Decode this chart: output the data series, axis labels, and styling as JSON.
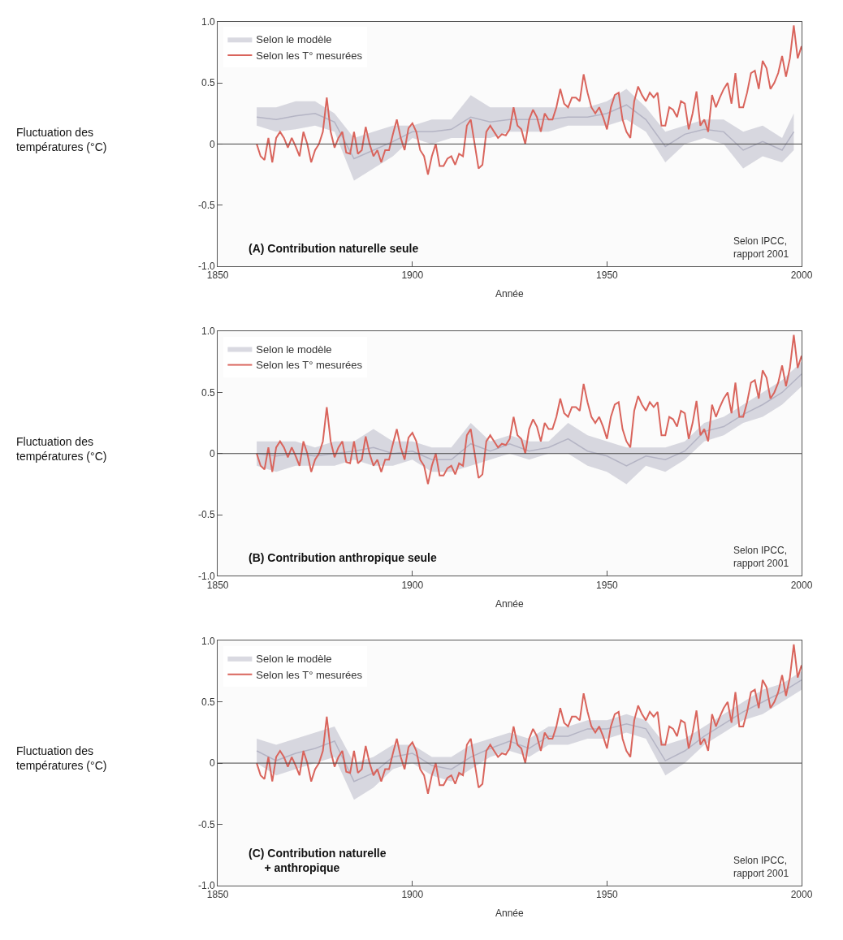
{
  "chart_data": [
    {
      "type": "line",
      "xlabel": "Année",
      "ylabel": "Fluctuation des\ntempératures (°C)",
      "xlim": [
        1850,
        2000
      ],
      "ylim": [
        -1.0,
        1.0
      ],
      "xticks": [
        1850,
        1900,
        1950,
        2000
      ],
      "yticks": [
        {
          "value": -1.0,
          "label": "-1.0"
        },
        {
          "value": -0.5,
          "label": "-0.5"
        },
        0,
        {
          "value": 0.5,
          "label": "0.5"
        },
        {
          "value": 1.0,
          "label": "1.0"
        }
      ],
      "grid": false,
      "legend": "top left",
      "marker": "none",
      "line_style": "solid",
      "ref_lines": [
        {
          "axis": "y",
          "value": 0,
          "color": "#444444"
        }
      ],
      "annotations": [
        "(A) Contribution naturelle seule",
        "Selon IPCC,\nrapport 2001"
      ],
      "series": [
        {
          "name": "Selon le modèle",
          "color": "#b4b4c4",
          "x": [
            1860,
            1865,
            1870,
            1875,
            1880,
            1885,
            1890,
            1895,
            1900,
            1905,
            1910,
            1915,
            1920,
            1925,
            1930,
            1935,
            1940,
            1945,
            1950,
            1955,
            1960,
            1965,
            1970,
            1975,
            1980,
            1985,
            1990,
            1995,
            1998
          ],
          "lower": [
            0.15,
            0.1,
            0.12,
            0.15,
            0.1,
            -0.3,
            -0.2,
            -0.1,
            0.05,
            0.0,
            0.05,
            0.05,
            0.05,
            0.1,
            0.1,
            0.1,
            0.15,
            0.15,
            0.15,
            0.2,
            0.1,
            -0.15,
            0.0,
            0.05,
            0.0,
            -0.2,
            -0.1,
            -0.15,
            -0.05
          ],
          "upper": [
            0.3,
            0.3,
            0.35,
            0.35,
            0.25,
            0.05,
            0.1,
            0.15,
            0.15,
            0.2,
            0.2,
            0.4,
            0.3,
            0.3,
            0.3,
            0.3,
            0.3,
            0.3,
            0.35,
            0.45,
            0.3,
            0.1,
            0.15,
            0.2,
            0.2,
            0.1,
            0.15,
            0.05,
            0.25
          ],
          "values": [
            0.22,
            0.2,
            0.23,
            0.25,
            0.18,
            -0.12,
            -0.05,
            0.02,
            0.1,
            0.1,
            0.12,
            0.22,
            0.18,
            0.2,
            0.2,
            0.2,
            0.22,
            0.22,
            0.25,
            0.32,
            0.2,
            -0.02,
            0.08,
            0.12,
            0.1,
            -0.05,
            0.02,
            -0.05,
            0.1
          ]
        },
        {
          "name": "Selon les T° mesurées",
          "type": "line",
          "color": "#d9645c",
          "x": [
            1860,
            1861,
            1862,
            1863,
            1864,
            1865,
            1866,
            1867,
            1868,
            1869,
            1870,
            1871,
            1872,
            1873,
            1874,
            1875,
            1876,
            1877,
            1878,
            1879,
            1880,
            1881,
            1882,
            1883,
            1884,
            1885,
            1886,
            1887,
            1888,
            1889,
            1890,
            1891,
            1892,
            1893,
            1894,
            1895,
            1896,
            1897,
            1898,
            1899,
            1900,
            1901,
            1902,
            1903,
            1904,
            1905,
            1906,
            1907,
            1908,
            1909,
            1910,
            1911,
            1912,
            1913,
            1914,
            1915,
            1916,
            1917,
            1918,
            1919,
            1920,
            1921,
            1922,
            1923,
            1924,
            1925,
            1926,
            1927,
            1928,
            1929,
            1930,
            1931,
            1932,
            1933,
            1934,
            1935,
            1936,
            1937,
            1938,
            1939,
            1940,
            1941,
            1942,
            1943,
            1944,
            1945,
            1946,
            1947,
            1948,
            1949,
            1950,
            1951,
            1952,
            1953,
            1954,
            1955,
            1956,
            1957,
            1958,
            1959,
            1960,
            1961,
            1962,
            1963,
            1964,
            1965,
            1966,
            1967,
            1968,
            1969,
            1970,
            1971,
            1972,
            1973,
            1974,
            1975,
            1976,
            1977,
            1978,
            1979,
            1980,
            1981,
            1982,
            1983,
            1984,
            1985,
            1986,
            1987,
            1988,
            1989,
            1990,
            1991,
            1992,
            1993,
            1994,
            1995,
            1996,
            1997,
            1998,
            1999,
            2000
          ],
          "values": [
            0.0,
            -0.1,
            -0.13,
            0.05,
            -0.15,
            0.05,
            0.1,
            0.05,
            -0.03,
            0.05,
            -0.02,
            -0.1,
            0.1,
            0.0,
            -0.15,
            -0.05,
            0.0,
            0.1,
            0.38,
            0.1,
            -0.03,
            0.05,
            0.1,
            -0.07,
            -0.08,
            0.1,
            -0.08,
            -0.05,
            0.14,
            0.0,
            -0.1,
            -0.05,
            -0.15,
            -0.05,
            -0.05,
            0.08,
            0.2,
            0.05,
            -0.05,
            0.13,
            0.17,
            0.1,
            -0.05,
            -0.1,
            -0.25,
            -0.1,
            0.0,
            -0.18,
            -0.18,
            -0.12,
            -0.1,
            -0.17,
            -0.08,
            -0.1,
            0.15,
            0.2,
            0.0,
            -0.2,
            -0.17,
            0.1,
            0.15,
            0.1,
            0.05,
            0.08,
            0.07,
            0.12,
            0.3,
            0.15,
            0.12,
            0.0,
            0.2,
            0.28,
            0.22,
            0.1,
            0.25,
            0.2,
            0.2,
            0.3,
            0.45,
            0.33,
            0.3,
            0.38,
            0.38,
            0.35,
            0.57,
            0.42,
            0.3,
            0.25,
            0.3,
            0.22,
            0.12,
            0.3,
            0.4,
            0.42,
            0.2,
            0.1,
            0.05,
            0.35,
            0.47,
            0.4,
            0.35,
            0.42,
            0.38,
            0.42,
            0.15,
            0.15,
            0.3,
            0.28,
            0.22,
            0.35,
            0.33,
            0.12,
            0.25,
            0.43,
            0.15,
            0.2,
            0.1,
            0.4,
            0.3,
            0.38,
            0.45,
            0.5,
            0.33,
            0.58,
            0.3,
            0.3,
            0.42,
            0.58,
            0.6,
            0.45,
            0.68,
            0.62,
            0.45,
            0.5,
            0.58,
            0.72,
            0.55,
            0.7,
            0.97,
            0.7,
            0.8
          ]
        }
      ]
    },
    {
      "type": "line",
      "xlabel": "Année",
      "ylabel": "Fluctuation des\ntempératures (°C)",
      "xlim": [
        1850,
        2000
      ],
      "ylim": [
        -1.0,
        1.0
      ],
      "xticks": [
        1850,
        1900,
        1950,
        2000
      ],
      "yticks": [
        {
          "value": -1.0,
          "label": "-1.0"
        },
        {
          "value": -0.5,
          "label": "-0.5"
        },
        0,
        {
          "value": 0.5,
          "label": "0.5"
        },
        {
          "value": 1.0,
          "label": "1.0"
        }
      ],
      "grid": false,
      "legend": "top left",
      "marker": "none",
      "line_style": "solid",
      "ref_lines": [
        {
          "axis": "y",
          "value": 0,
          "color": "#444444"
        }
      ],
      "annotations": [
        "(B) Contribution anthropique seule",
        "Selon IPCC,\nrapport 2001"
      ],
      "series": [
        {
          "name": "Selon le modèle",
          "color": "#b4b4c4",
          "x": [
            1860,
            1865,
            1870,
            1875,
            1880,
            1885,
            1890,
            1895,
            1900,
            1905,
            1910,
            1915,
            1920,
            1925,
            1930,
            1935,
            1940,
            1945,
            1950,
            1955,
            1960,
            1965,
            1970,
            1975,
            1980,
            1985,
            1990,
            1995,
            2000
          ],
          "lower": [
            -0.1,
            -0.15,
            -0.1,
            -0.1,
            -0.1,
            -0.05,
            -0.1,
            -0.1,
            -0.05,
            -0.15,
            -0.15,
            -0.1,
            -0.05,
            0.0,
            -0.05,
            0.0,
            0.0,
            -0.1,
            -0.15,
            -0.25,
            -0.1,
            -0.15,
            -0.05,
            0.1,
            0.15,
            0.25,
            0.3,
            0.4,
            0.55
          ],
          "upper": [
            0.1,
            0.1,
            0.1,
            0.05,
            0.1,
            0.1,
            0.2,
            0.1,
            0.1,
            0.05,
            0.05,
            0.25,
            0.1,
            0.15,
            0.1,
            0.1,
            0.25,
            0.15,
            0.1,
            0.05,
            0.05,
            0.05,
            0.1,
            0.25,
            0.3,
            0.4,
            0.5,
            0.6,
            0.75
          ],
          "values": [
            0.0,
            -0.02,
            0.0,
            -0.02,
            0.0,
            0.02,
            0.05,
            0.0,
            0.02,
            -0.05,
            -0.05,
            0.08,
            0.02,
            0.08,
            0.02,
            0.05,
            0.12,
            0.02,
            -0.02,
            -0.1,
            -0.02,
            -0.05,
            0.02,
            0.18,
            0.22,
            0.32,
            0.4,
            0.5,
            0.65
          ]
        },
        {
          "name": "Selon les T° mesurées",
          "type": "line",
          "color": "#d9645c",
          "x": [
            1860,
            1861,
            1862,
            1863,
            1864,
            1865,
            1866,
            1867,
            1868,
            1869,
            1870,
            1871,
            1872,
            1873,
            1874,
            1875,
            1876,
            1877,
            1878,
            1879,
            1880,
            1881,
            1882,
            1883,
            1884,
            1885,
            1886,
            1887,
            1888,
            1889,
            1890,
            1891,
            1892,
            1893,
            1894,
            1895,
            1896,
            1897,
            1898,
            1899,
            1900,
            1901,
            1902,
            1903,
            1904,
            1905,
            1906,
            1907,
            1908,
            1909,
            1910,
            1911,
            1912,
            1913,
            1914,
            1915,
            1916,
            1917,
            1918,
            1919,
            1920,
            1921,
            1922,
            1923,
            1924,
            1925,
            1926,
            1927,
            1928,
            1929,
            1930,
            1931,
            1932,
            1933,
            1934,
            1935,
            1936,
            1937,
            1938,
            1939,
            1940,
            1941,
            1942,
            1943,
            1944,
            1945,
            1946,
            1947,
            1948,
            1949,
            1950,
            1951,
            1952,
            1953,
            1954,
            1955,
            1956,
            1957,
            1958,
            1959,
            1960,
            1961,
            1962,
            1963,
            1964,
            1965,
            1966,
            1967,
            1968,
            1969,
            1970,
            1971,
            1972,
            1973,
            1974,
            1975,
            1976,
            1977,
            1978,
            1979,
            1980,
            1981,
            1982,
            1983,
            1984,
            1985,
            1986,
            1987,
            1988,
            1989,
            1990,
            1991,
            1992,
            1993,
            1994,
            1995,
            1996,
            1997,
            1998,
            1999,
            2000
          ],
          "values": [
            0.0,
            -0.1,
            -0.13,
            0.05,
            -0.15,
            0.05,
            0.1,
            0.05,
            -0.03,
            0.05,
            -0.02,
            -0.1,
            0.1,
            0.0,
            -0.15,
            -0.05,
            0.0,
            0.1,
            0.38,
            0.1,
            -0.03,
            0.05,
            0.1,
            -0.07,
            -0.08,
            0.1,
            -0.08,
            -0.05,
            0.14,
            0.0,
            -0.1,
            -0.05,
            -0.15,
            -0.05,
            -0.05,
            0.08,
            0.2,
            0.05,
            -0.05,
            0.13,
            0.17,
            0.1,
            -0.05,
            -0.1,
            -0.25,
            -0.1,
            0.0,
            -0.18,
            -0.18,
            -0.12,
            -0.1,
            -0.17,
            -0.08,
            -0.1,
            0.15,
            0.2,
            0.0,
            -0.2,
            -0.17,
            0.1,
            0.15,
            0.1,
            0.05,
            0.08,
            0.07,
            0.12,
            0.3,
            0.15,
            0.12,
            0.0,
            0.2,
            0.28,
            0.22,
            0.1,
            0.25,
            0.2,
            0.2,
            0.3,
            0.45,
            0.33,
            0.3,
            0.38,
            0.38,
            0.35,
            0.57,
            0.42,
            0.3,
            0.25,
            0.3,
            0.22,
            0.12,
            0.3,
            0.4,
            0.42,
            0.2,
            0.1,
            0.05,
            0.35,
            0.47,
            0.4,
            0.35,
            0.42,
            0.38,
            0.42,
            0.15,
            0.15,
            0.3,
            0.28,
            0.22,
            0.35,
            0.33,
            0.12,
            0.25,
            0.43,
            0.15,
            0.2,
            0.1,
            0.4,
            0.3,
            0.38,
            0.45,
            0.5,
            0.33,
            0.58,
            0.3,
            0.3,
            0.42,
            0.58,
            0.6,
            0.45,
            0.68,
            0.62,
            0.45,
            0.5,
            0.58,
            0.72,
            0.55,
            0.7,
            0.97,
            0.7,
            0.8
          ]
        }
      ]
    },
    {
      "type": "line",
      "xlabel": "Année",
      "ylabel": "Fluctuation des\ntempératures (°C)",
      "xlim": [
        1850,
        2000
      ],
      "ylim": [
        -1.0,
        1.0
      ],
      "xticks": [
        1850,
        1900,
        1950,
        2000
      ],
      "yticks": [
        {
          "value": -1.0,
          "label": "-1.0"
        },
        {
          "value": -0.5,
          "label": "-0.5"
        },
        0,
        {
          "value": 0.5,
          "label": "0.5"
        },
        {
          "value": 1.0,
          "label": "1.0"
        }
      ],
      "grid": false,
      "legend": "top left",
      "marker": "none",
      "line_style": "solid",
      "ref_lines": [
        {
          "axis": "y",
          "value": 0,
          "color": "#444444"
        }
      ],
      "annotations": [
        "(C) Contribution naturelle\n     + anthropique",
        "Selon IPCC,\nrapport 2001"
      ],
      "series": [
        {
          "name": "Selon le modèle",
          "color": "#b4b4c4",
          "x": [
            1860,
            1865,
            1870,
            1875,
            1880,
            1885,
            1890,
            1895,
            1900,
            1905,
            1910,
            1915,
            1920,
            1925,
            1930,
            1935,
            1940,
            1945,
            1950,
            1955,
            1960,
            1965,
            1970,
            1975,
            1980,
            1985,
            1990,
            1995,
            2000
          ],
          "lower": [
            0.0,
            -0.1,
            -0.05,
            0.0,
            0.05,
            -0.3,
            -0.2,
            -0.05,
            0.0,
            -0.1,
            -0.15,
            -0.05,
            0.05,
            0.1,
            0.05,
            0.15,
            0.15,
            0.2,
            0.2,
            0.25,
            0.2,
            -0.1,
            0.0,
            0.15,
            0.25,
            0.35,
            0.4,
            0.5,
            0.6
          ],
          "upper": [
            0.2,
            0.15,
            0.2,
            0.25,
            0.3,
            0.0,
            0.05,
            0.15,
            0.15,
            0.05,
            0.05,
            0.15,
            0.2,
            0.25,
            0.2,
            0.3,
            0.3,
            0.35,
            0.35,
            0.4,
            0.35,
            0.15,
            0.2,
            0.3,
            0.4,
            0.5,
            0.6,
            0.65,
            0.75
          ],
          "values": [
            0.1,
            0.02,
            0.08,
            0.12,
            0.18,
            -0.15,
            -0.08,
            0.05,
            0.08,
            -0.02,
            -0.05,
            0.05,
            0.12,
            0.18,
            0.12,
            0.22,
            0.22,
            0.28,
            0.28,
            0.32,
            0.28,
            0.02,
            0.1,
            0.22,
            0.32,
            0.42,
            0.5,
            0.58,
            0.68
          ]
        },
        {
          "name": "Selon les T° mesurées",
          "type": "line",
          "color": "#d9645c",
          "x": [
            1860,
            1861,
            1862,
            1863,
            1864,
            1865,
            1866,
            1867,
            1868,
            1869,
            1870,
            1871,
            1872,
            1873,
            1874,
            1875,
            1876,
            1877,
            1878,
            1879,
            1880,
            1881,
            1882,
            1883,
            1884,
            1885,
            1886,
            1887,
            1888,
            1889,
            1890,
            1891,
            1892,
            1893,
            1894,
            1895,
            1896,
            1897,
            1898,
            1899,
            1900,
            1901,
            1902,
            1903,
            1904,
            1905,
            1906,
            1907,
            1908,
            1909,
            1910,
            1911,
            1912,
            1913,
            1914,
            1915,
            1916,
            1917,
            1918,
            1919,
            1920,
            1921,
            1922,
            1923,
            1924,
            1925,
            1926,
            1927,
            1928,
            1929,
            1930,
            1931,
            1932,
            1933,
            1934,
            1935,
            1936,
            1937,
            1938,
            1939,
            1940,
            1941,
            1942,
            1943,
            1944,
            1945,
            1946,
            1947,
            1948,
            1949,
            1950,
            1951,
            1952,
            1953,
            1954,
            1955,
            1956,
            1957,
            1958,
            1959,
            1960,
            1961,
            1962,
            1963,
            1964,
            1965,
            1966,
            1967,
            1968,
            1969,
            1970,
            1971,
            1972,
            1973,
            1974,
            1975,
            1976,
            1977,
            1978,
            1979,
            1980,
            1981,
            1982,
            1983,
            1984,
            1985,
            1986,
            1987,
            1988,
            1989,
            1990,
            1991,
            1992,
            1993,
            1994,
            1995,
            1996,
            1997,
            1998,
            1999,
            2000
          ],
          "values": [
            0.0,
            -0.1,
            -0.13,
            0.05,
            -0.15,
            0.05,
            0.1,
            0.05,
            -0.03,
            0.05,
            -0.02,
            -0.1,
            0.1,
            0.0,
            -0.15,
            -0.05,
            0.0,
            0.1,
            0.38,
            0.1,
            -0.03,
            0.05,
            0.1,
            -0.07,
            -0.08,
            0.1,
            -0.08,
            -0.05,
            0.14,
            0.0,
            -0.1,
            -0.05,
            -0.15,
            -0.05,
            -0.05,
            0.08,
            0.2,
            0.05,
            -0.05,
            0.13,
            0.17,
            0.1,
            -0.05,
            -0.1,
            -0.25,
            -0.1,
            0.0,
            -0.18,
            -0.18,
            -0.12,
            -0.1,
            -0.17,
            -0.08,
            -0.1,
            0.15,
            0.2,
            0.0,
            -0.2,
            -0.17,
            0.1,
            0.15,
            0.1,
            0.05,
            0.08,
            0.07,
            0.12,
            0.3,
            0.15,
            0.12,
            0.0,
            0.2,
            0.28,
            0.22,
            0.1,
            0.25,
            0.2,
            0.2,
            0.3,
            0.45,
            0.33,
            0.3,
            0.38,
            0.38,
            0.35,
            0.57,
            0.42,
            0.3,
            0.25,
            0.3,
            0.22,
            0.12,
            0.3,
            0.4,
            0.42,
            0.2,
            0.1,
            0.05,
            0.35,
            0.47,
            0.4,
            0.35,
            0.42,
            0.38,
            0.42,
            0.15,
            0.15,
            0.3,
            0.28,
            0.22,
            0.35,
            0.33,
            0.12,
            0.25,
            0.43,
            0.15,
            0.2,
            0.1,
            0.4,
            0.3,
            0.38,
            0.45,
            0.5,
            0.33,
            0.58,
            0.3,
            0.3,
            0.42,
            0.58,
            0.6,
            0.45,
            0.68,
            0.62,
            0.45,
            0.5,
            0.58,
            0.72,
            0.55,
            0.7,
            0.97,
            0.7,
            0.8
          ]
        }
      ]
    }
  ]
}
